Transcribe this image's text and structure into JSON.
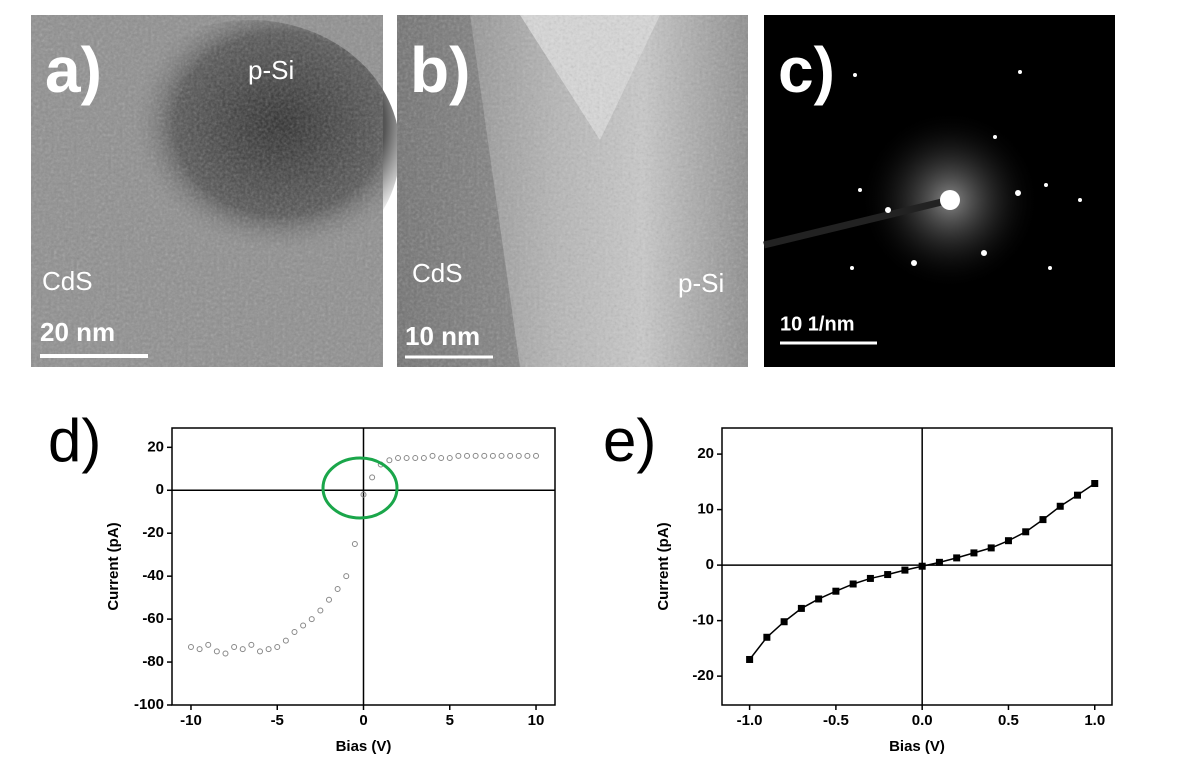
{
  "panels": [
    {
      "label": "a)",
      "annotations": [
        "p-Si",
        "CdS"
      ],
      "scale_bar": "20 nm"
    },
    {
      "label": "b)",
      "annotations": [
        "CdS",
        "p-Si"
      ],
      "scale_bar": "10 nm"
    },
    {
      "label": "c)",
      "annotations": [],
      "scale_bar": "10 1/nm"
    }
  ],
  "chart_data": [
    {
      "type": "scatter",
      "panel_label": "d)",
      "x_label": "Bias (V)",
      "y_label": "Current (pA)",
      "color": "#888888",
      "x": [
        -10,
        -9.5,
        -9,
        -8.5,
        -8,
        -7.5,
        -7,
        -6.5,
        -6,
        -5.5,
        -5,
        -4.5,
        -4,
        -3.5,
        -3,
        -2.5,
        -2,
        -1.5,
        -1,
        -0.5,
        0,
        0.5,
        1,
        1.5,
        2,
        2.5,
        3,
        3.5,
        4,
        4.5,
        5,
        5.5,
        6,
        6.5,
        7,
        7.5,
        8,
        8.5,
        9,
        9.5,
        10
      ],
      "values": [
        -73,
        -74,
        -72,
        -75,
        -76,
        -73,
        -74,
        -72,
        -75,
        -74,
        -73,
        -70,
        -66,
        -63,
        -60,
        -56,
        -51,
        -46,
        -40,
        -25,
        -2,
        6,
        12,
        14,
        15,
        15,
        15,
        15,
        16,
        15,
        15,
        16,
        16,
        16,
        16,
        16,
        16,
        16,
        16,
        16,
        16
      ],
      "xlim": [
        -11.1,
        11.1
      ],
      "ylim": [
        -100,
        29
      ],
      "xticks": [
        -10,
        -5,
        0,
        5,
        10
      ],
      "yticks": [
        -100,
        -80,
        -60,
        -40,
        -20,
        0,
        20
      ]
    },
    {
      "type": "line",
      "panel_label": "e)",
      "x_label": "Bias (V)",
      "y_label": "Current (pA)",
      "color": "#000000",
      "x": [
        -1,
        -0.9,
        -0.8,
        -0.7,
        -0.6,
        -0.5,
        -0.4,
        -0.3,
        -0.2,
        -0.1,
        0,
        0.1,
        0.2,
        0.3,
        0.4,
        0.5,
        0.6,
        0.7,
        0.8,
        0.9,
        1
      ],
      "values": [
        -17,
        -13,
        -10.2,
        -7.8,
        -6.1,
        -4.7,
        -3.4,
        -2.4,
        -1.7,
        -0.9,
        -0.2,
        0.5,
        1.3,
        2.2,
        3.1,
        4.4,
        6,
        8.2,
        10.6,
        12.6,
        14.7
      ],
      "xlim": [
        -1.16,
        1.1
      ],
      "ylim": [
        -25.2,
        24.7
      ],
      "xticks": [
        {
          "value": -1,
          "label": "-1.0"
        },
        -0.5,
        {
          "value": 0,
          "label": "0.0"
        },
        0.5,
        {
          "value": 1,
          "label": "1.0"
        }
      ],
      "yticks": [
        -20,
        -10,
        0,
        10,
        20
      ]
    }
  ]
}
